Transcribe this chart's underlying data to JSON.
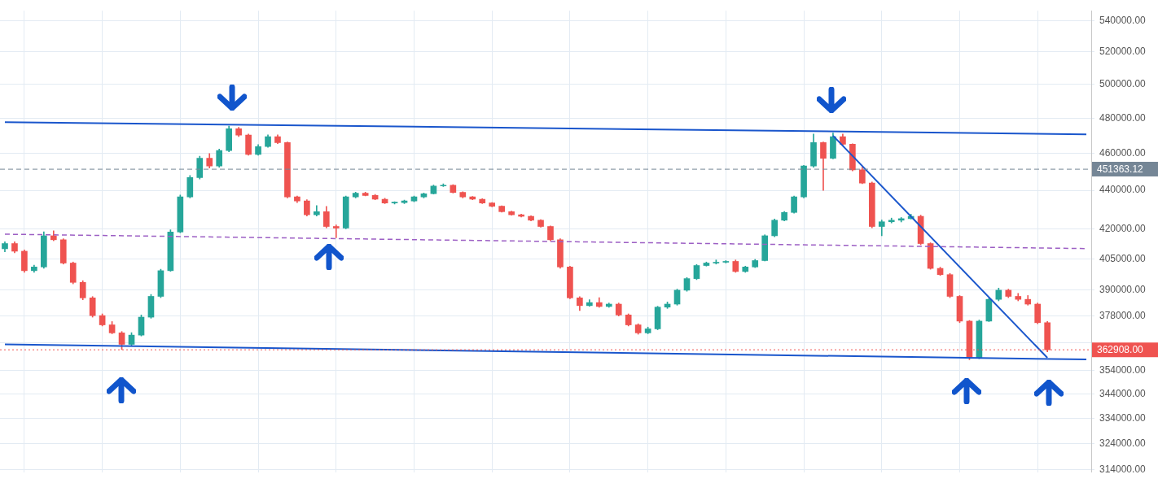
{
  "chart_data": {
    "type": "candlestick",
    "categories": [
      null,
      null,
      null,
      null,
      null,
      null,
      null,
      null,
      null,
      null,
      null,
      null,
      null,
      null,
      null,
      null,
      null,
      null,
      null,
      null,
      null,
      null,
      null,
      null,
      null,
      null,
      null,
      null,
      null,
      null,
      null,
      null,
      null,
      null,
      null,
      null,
      null,
      null,
      null,
      null,
      null,
      null,
      null,
      null,
      null,
      null,
      null,
      null,
      null,
      null,
      null,
      null,
      null,
      null,
      null,
      null,
      null,
      null,
      null,
      null,
      null,
      null,
      null,
      null,
      null,
      null,
      null,
      null,
      null,
      null,
      null,
      null,
      null,
      null,
      null,
      null,
      null,
      null,
      null,
      null,
      null,
      null,
      null,
      null,
      null,
      null,
      null,
      null,
      null,
      null,
      null,
      null,
      null,
      null,
      null,
      null,
      null,
      null,
      null,
      null,
      null,
      null,
      null,
      null,
      null,
      null,
      null,
      null,
      null,
      null,
      null,
      null
    ],
    "ohlc": [
      [
        410000,
        413500,
        408500,
        412600
      ],
      [
        412600,
        413500,
        408000,
        408800
      ],
      [
        408800,
        409500,
        398500,
        399300
      ],
      [
        399300,
        402000,
        398500,
        401100
      ],
      [
        401100,
        418500,
        400500,
        416500
      ],
      [
        416500,
        419000,
        414000,
        414500
      ],
      [
        414500,
        415000,
        402500,
        403000
      ],
      [
        403000,
        403500,
        393000,
        393700
      ],
      [
        393700,
        394500,
        385500,
        386400
      ],
      [
        386400,
        387000,
        377500,
        378200
      ],
      [
        378200,
        379000,
        373500,
        374000
      ],
      [
        374000,
        375500,
        370000,
        370400
      ],
      [
        370400,
        371000,
        363000,
        365300
      ],
      [
        365300,
        370500,
        364500,
        369400
      ],
      [
        369400,
        378500,
        369000,
        377500
      ],
      [
        377500,
        388000,
        377000,
        387100
      ],
      [
        387100,
        400000,
        386500,
        399300
      ],
      [
        399300,
        419500,
        399000,
        418400
      ],
      [
        418400,
        437500,
        418000,
        436500
      ],
      [
        436500,
        448000,
        436000,
        446800
      ],
      [
        446800,
        458500,
        446000,
        457400
      ],
      [
        457400,
        460000,
        452000,
        453100
      ],
      [
        453100,
        462500,
        452500,
        461700
      ],
      [
        461700,
        475500,
        461000,
        474000
      ],
      [
        474000,
        474800,
        469500,
        470400
      ],
      [
        470400,
        471000,
        459000,
        459500
      ],
      [
        459500,
        465000,
        459000,
        463900
      ],
      [
        463900,
        470500,
        463500,
        469500
      ],
      [
        469500,
        470500,
        465500,
        466100
      ],
      [
        466100,
        466500,
        436000,
        436500
      ],
      [
        436500,
        437000,
        433500,
        434400
      ],
      [
        434400,
        435000,
        426500,
        427200
      ],
      [
        427200,
        432000,
        426500,
        428800
      ],
      [
        428800,
        431500,
        420500,
        421200
      ],
      [
        421200,
        422000,
        415500,
        420400
      ],
      [
        420400,
        437000,
        420000,
        436500
      ],
      [
        436500,
        439000,
        436000,
        438500
      ],
      [
        438500,
        439000,
        437000,
        437300
      ],
      [
        437300,
        437800,
        435000,
        435300
      ],
      [
        435300,
        435800,
        433000,
        433300
      ],
      [
        433300,
        434000,
        432800,
        433500
      ],
      [
        433500,
        434800,
        433000,
        434400
      ],
      [
        434400,
        437000,
        434000,
        436500
      ],
      [
        436500,
        438600,
        436000,
        438200
      ],
      [
        438200,
        442800,
        438000,
        442300
      ],
      [
        442300,
        443500,
        442000,
        442700
      ],
      [
        442700,
        443000,
        438500,
        438900
      ],
      [
        438900,
        439200,
        436000,
        436500
      ],
      [
        436500,
        436800,
        435000,
        435300
      ],
      [
        435300,
        435600,
        433000,
        433300
      ],
      [
        433300,
        433600,
        431300,
        431600
      ],
      [
        431600,
        431900,
        428500,
        428800
      ],
      [
        428800,
        429100,
        427000,
        427200
      ],
      [
        427200,
        427500,
        426000,
        426400
      ],
      [
        426400,
        426700,
        424000,
        424400
      ],
      [
        424400,
        424700,
        420800,
        421200
      ],
      [
        421200,
        421500,
        414000,
        414500
      ],
      [
        414500,
        415000,
        400500,
        401100
      ],
      [
        401100,
        401500,
        386000,
        386400
      ],
      [
        386400,
        387000,
        380500,
        382800
      ],
      [
        382800,
        385500,
        382500,
        384200
      ],
      [
        384200,
        386500,
        382000,
        382400
      ],
      [
        382400,
        384000,
        382000,
        383500
      ],
      [
        383500,
        384000,
        378000,
        378500
      ],
      [
        378500,
        379000,
        373500,
        374000
      ],
      [
        374000,
        374500,
        369800,
        370400
      ],
      [
        370400,
        373000,
        370000,
        372200
      ],
      [
        372200,
        382500,
        371800,
        382100
      ],
      [
        382100,
        384500,
        381500,
        383500
      ],
      [
        383500,
        390500,
        383000,
        390000
      ],
      [
        390000,
        396000,
        389500,
        395500
      ],
      [
        395500,
        402300,
        395000,
        401800
      ],
      [
        401800,
        403500,
        401500,
        403000
      ],
      [
        403000,
        404500,
        402500,
        403400
      ],
      [
        403400,
        404200,
        403000,
        403800
      ],
      [
        403800,
        404500,
        398500,
        398900
      ],
      [
        398900,
        401500,
        398500,
        401100
      ],
      [
        401100,
        404800,
        400800,
        404200
      ],
      [
        404200,
        417000,
        404000,
        416500
      ],
      [
        416500,
        425000,
        416000,
        424400
      ],
      [
        424400,
        428900,
        424000,
        428400
      ],
      [
        428400,
        437000,
        428000,
        436500
      ],
      [
        436500,
        453500,
        436000,
        453100
      ],
      [
        453100,
        471000,
        452500,
        466100
      ],
      [
        466100,
        466500,
        440000,
        457400
      ],
      [
        457400,
        471500,
        457000,
        469500
      ],
      [
        469500,
        471000,
        464500,
        465200
      ],
      [
        465200,
        465500,
        450500,
        451000
      ],
      [
        451000,
        452500,
        443500,
        443900
      ],
      [
        443900,
        444500,
        420500,
        421200
      ],
      [
        421200,
        424500,
        416500,
        423600
      ],
      [
        423600,
        425500,
        423000,
        424400
      ],
      [
        424400,
        425800,
        423500,
        425200
      ],
      [
        425200,
        427500,
        425000,
        426400
      ],
      [
        426400,
        427000,
        412000,
        412600
      ],
      [
        412600,
        413000,
        400000,
        400400
      ],
      [
        400400,
        401000,
        397000,
        397400
      ],
      [
        397400,
        398000,
        386500,
        387100
      ],
      [
        387100,
        387500,
        375000,
        375700
      ],
      [
        375700,
        376000,
        358600,
        359400
      ],
      [
        359400,
        376200,
        359000,
        375700
      ],
      [
        375700,
        386200,
        375500,
        385700
      ],
      [
        385700,
        391000,
        385000,
        390000
      ],
      [
        390000,
        390500,
        386500,
        387100
      ],
      [
        387100,
        388500,
        385000,
        385700
      ],
      [
        385700,
        387500,
        383000,
        383500
      ],
      [
        383500,
        384000,
        374500,
        375000
      ],
      [
        375000,
        375500,
        362000,
        362908
      ],
      null,
      null,
      null,
      null
    ],
    "colors": [
      "#26a69a",
      "#ef5350",
      "#ef5350",
      "#26a69a",
      "#26a69a",
      "#ef5350",
      "#ef5350",
      "#ef5350",
      "#ef5350",
      "#ef5350",
      "#ef5350",
      "#ef5350",
      "#ef5350",
      "#26a69a",
      "#26a69a",
      "#26a69a",
      "#26a69a",
      "#26a69a",
      "#26a69a",
      "#26a69a",
      "#26a69a",
      "#ef5350",
      "#26a69a",
      "#26a69a",
      "#ef5350",
      "#ef5350",
      "#26a69a",
      "#26a69a",
      "#ef5350",
      "#ef5350",
      "#ef5350",
      "#ef5350",
      "#26a69a",
      "#ef5350",
      "#ef5350",
      "#26a69a",
      "#26a69a",
      "#ef5350",
      "#ef5350",
      "#ef5350",
      "#26a69a",
      "#26a69a",
      "#26a69a",
      "#26a69a",
      "#26a69a",
      "#26a69a",
      "#ef5350",
      "#ef5350",
      "#ef5350",
      "#ef5350",
      "#ef5350",
      "#ef5350",
      "#ef5350",
      "#ef5350",
      "#ef5350",
      "#ef5350",
      "#ef5350",
      "#ef5350",
      "#ef5350",
      "#ef5350",
      "#26a69a",
      "#ef5350",
      "#26a69a",
      "#ef5350",
      "#ef5350",
      "#ef5350",
      "#26a69a",
      "#26a69a",
      "#26a69a",
      "#26a69a",
      "#26a69a",
      "#26a69a",
      "#26a69a",
      "#26a69a",
      "#26a69a",
      "#ef5350",
      "#26a69a",
      "#26a69a",
      "#26a69a",
      "#26a69a",
      "#26a69a",
      "#26a69a",
      "#26a69a",
      "#26a69a",
      "#ef5350",
      "#26a69a",
      "#ef5350",
      "#ef5350",
      "#ef5350",
      "#ef5350",
      "#26a69a",
      "#26a69a",
      "#26a69a",
      "#26a69a",
      "#ef5350",
      "#ef5350",
      "#ef5350",
      "#ef5350",
      "#ef5350",
      "#ef5350",
      "#26a69a",
      "#26a69a",
      "#26a69a",
      "#ef5350",
      "#ef5350",
      "#ef5350",
      "#ef5350",
      "#ef5350",
      null,
      null,
      null,
      null
    ],
    "series": [
      {
        "type": "line",
        "color": "#1a56cc",
        "line_style": "solid",
        "values": [
          477800,
          null,
          null,
          null,
          null,
          null,
          null,
          null,
          null,
          null,
          null,
          null,
          null,
          null,
          null,
          null,
          null,
          null,
          null,
          null,
          null,
          null,
          null,
          null,
          null,
          null,
          null,
          null,
          null,
          null,
          null,
          null,
          null,
          null,
          null,
          null,
          null,
          null,
          null,
          null,
          null,
          null,
          null,
          null,
          null,
          null,
          null,
          null,
          null,
          null,
          null,
          null,
          null,
          null,
          null,
          null,
          null,
          null,
          null,
          null,
          null,
          null,
          null,
          null,
          null,
          null,
          null,
          null,
          null,
          null,
          null,
          null,
          null,
          null,
          null,
          null,
          null,
          null,
          null,
          null,
          null,
          null,
          null,
          null,
          null,
          null,
          null,
          null,
          null,
          null,
          null,
          null,
          null,
          null,
          null,
          null,
          null,
          null,
          null,
          null,
          null,
          null,
          null,
          null,
          null,
          null,
          null,
          null,
          null,
          null,
          null,
          470800
        ]
      },
      {
        "type": "line",
        "color": "#1a56cc",
        "line_style": "solid",
        "values": [
          365300,
          null,
          null,
          null,
          null,
          null,
          null,
          null,
          null,
          null,
          null,
          null,
          null,
          null,
          null,
          null,
          null,
          null,
          null,
          null,
          null,
          null,
          null,
          null,
          null,
          null,
          null,
          null,
          null,
          null,
          null,
          null,
          null,
          null,
          null,
          null,
          null,
          null,
          null,
          null,
          null,
          null,
          null,
          null,
          null,
          null,
          null,
          null,
          null,
          null,
          null,
          null,
          null,
          null,
          null,
          null,
          null,
          null,
          null,
          null,
          null,
          null,
          null,
          null,
          null,
          null,
          null,
          null,
          null,
          null,
          null,
          null,
          null,
          null,
          null,
          null,
          null,
          null,
          null,
          null,
          null,
          null,
          null,
          null,
          null,
          null,
          null,
          null,
          null,
          null,
          null,
          null,
          null,
          null,
          null,
          null,
          null,
          null,
          null,
          null,
          null,
          null,
          null,
          null,
          null,
          null,
          null,
          null,
          null,
          null,
          null,
          358700
        ]
      },
      {
        "type": "line",
        "color": "#1a56cc",
        "line_style": "solid",
        "values": [
          null,
          null,
          null,
          null,
          null,
          null,
          null,
          null,
          null,
          null,
          null,
          null,
          null,
          null,
          null,
          null,
          null,
          null,
          null,
          null,
          null,
          null,
          null,
          null,
          null,
          null,
          null,
          null,
          null,
          null,
          null,
          null,
          null,
          null,
          null,
          null,
          null,
          null,
          null,
          null,
          null,
          null,
          null,
          null,
          null,
          null,
          null,
          null,
          null,
          null,
          null,
          null,
          null,
          null,
          null,
          null,
          null,
          null,
          null,
          null,
          null,
          null,
          null,
          null,
          null,
          null,
          null,
          null,
          null,
          null,
          null,
          null,
          null,
          null,
          null,
          null,
          null,
          null,
          null,
          null,
          null,
          null,
          null,
          null,
          null,
          470000,
          null,
          null,
          null,
          null,
          null,
          null,
          null,
          null,
          null,
          null,
          null,
          null,
          null,
          null,
          null,
          null,
          null,
          null,
          null,
          null,
          null,
          359400,
          null,
          null,
          null,
          null
        ]
      },
      {
        "type": "line",
        "color": "#9c5fc4",
        "line_style": "dashed",
        "values": [
          417300,
          null,
          null,
          null,
          null,
          null,
          null,
          null,
          null,
          null,
          null,
          null,
          null,
          null,
          null,
          null,
          null,
          null,
          null,
          null,
          null,
          null,
          null,
          null,
          null,
          null,
          null,
          null,
          null,
          null,
          null,
          null,
          null,
          null,
          null,
          null,
          null,
          null,
          null,
          null,
          null,
          null,
          null,
          null,
          null,
          null,
          null,
          null,
          null,
          null,
          null,
          null,
          null,
          null,
          null,
          null,
          null,
          null,
          null,
          null,
          null,
          null,
          null,
          null,
          null,
          null,
          null,
          null,
          null,
          null,
          null,
          null,
          null,
          null,
          null,
          null,
          null,
          null,
          null,
          null,
          null,
          null,
          null,
          null,
          null,
          null,
          null,
          null,
          null,
          null,
          null,
          null,
          null,
          null,
          null,
          null,
          null,
          null,
          null,
          null,
          null,
          null,
          null,
          null,
          null,
          null,
          null,
          null,
          null,
          null,
          null,
          410100
        ]
      }
    ],
    "ref_lines": [
      {
        "axis": "y",
        "value": 451363.12,
        "label": "451363.12",
        "color": "#758696",
        "line_style": "dashed"
      },
      {
        "axis": "y",
        "value": 362908,
        "label": "362908.00",
        "color": "#ef5350",
        "line_style": "dotted"
      }
    ],
    "log": "y",
    "ylim": [
      313000,
      546600
    ],
    "yticks": [
      {
        "value": 540000,
        "label": "540000.00"
      },
      {
        "value": 520000,
        "label": "520000.00"
      },
      {
        "value": 500000,
        "label": "500000.00"
      },
      {
        "value": 480000,
        "label": "480000.00"
      },
      {
        "value": 460000,
        "label": "460000.00"
      },
      {
        "value": 440000,
        "label": "440000.00"
      },
      {
        "value": 420000,
        "label": "420000.00"
      },
      {
        "value": 405000,
        "label": "405000.00"
      },
      {
        "value": 390000,
        "label": "390000.00"
      },
      {
        "value": 378000,
        "label": "378000.00"
      },
      {
        "value": 366000,
        "label": null
      },
      {
        "value": 354000,
        "label": "354000.00"
      },
      {
        "value": 344000,
        "label": "344000.00"
      },
      {
        "value": 334000,
        "label": "334000.00"
      },
      {
        "value": 324000,
        "label": "324000.00"
      },
      {
        "value": 314000,
        "label": "314000.00"
      }
    ],
    "grid": true,
    "legend": false,
    "tick_labels": "y"
  }
}
